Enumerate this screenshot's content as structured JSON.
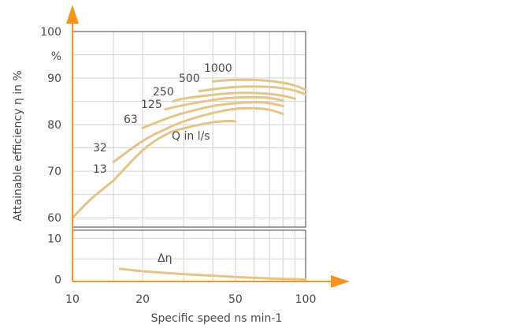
{
  "chart_data": [
    {
      "type": "line",
      "ylabel": "Attainable efficiency η in %",
      "xscale": "log",
      "xlim": [
        10,
        100
      ],
      "ylim": [
        58,
        100
      ],
      "yticks": [
        60,
        70,
        80,
        90,
        100
      ],
      "yunit_label": "%",
      "annotation": "Q in l/s",
      "grid": true,
      "series": [
        {
          "name": "13",
          "x": [
            15,
            20,
            25,
            30,
            40,
            47,
            50
          ],
          "y": [
            68,
            74.5,
            77.8,
            79.2,
            80.5,
            80.8,
            80.7
          ]
        },
        {
          "name": "32",
          "x": [
            15,
            20,
            25,
            30,
            40,
            50,
            60,
            70,
            80
          ],
          "y": [
            72,
            76.5,
            79,
            80.7,
            82.5,
            83.4,
            83.5,
            83.2,
            82.3
          ]
        },
        {
          "name": "63",
          "x": [
            20,
            25,
            30,
            40,
            50,
            60,
            70,
            80
          ],
          "y": [
            79.3,
            81.2,
            82.5,
            84,
            84.6,
            84.8,
            84.6,
            84
          ]
        },
        {
          "name": "125",
          "x": [
            25,
            30,
            40,
            50,
            60,
            70,
            80
          ],
          "y": [
            83.3,
            84.2,
            85.3,
            85.8,
            85.9,
            85.7,
            85.2
          ]
        },
        {
          "name": "250",
          "x": [
            27,
            30,
            40,
            50,
            60,
            70,
            80,
            90
          ],
          "y": [
            85,
            85.6,
            86.4,
            86.8,
            86.8,
            86.6,
            86.2,
            85.6
          ]
        },
        {
          "name": "500",
          "x": [
            35,
            40,
            50,
            60,
            70,
            80,
            90,
            100
          ],
          "y": [
            87.2,
            87.6,
            88.1,
            88.2,
            88.1,
            87.8,
            87.3,
            86.5
          ]
        },
        {
          "name": "1000",
          "x": [
            40,
            45,
            50,
            60,
            70,
            80,
            90,
            100
          ],
          "y": [
            89.3,
            89.5,
            89.6,
            89.6,
            89.4,
            89,
            88.4,
            87.5
          ]
        },
        {
          "name": "",
          "x": [
            10,
            12,
            15
          ],
          "y": [
            60,
            64,
            68
          ]
        }
      ]
    },
    {
      "type": "line",
      "xlabel": "Specific speed ns min-1",
      "xscale": "log",
      "xlim": [
        10,
        100
      ],
      "xticks": [
        10,
        20,
        50,
        100
      ],
      "ylim": [
        -0.5,
        12
      ],
      "yticks": [
        0,
        10
      ],
      "grid": true,
      "series": [
        {
          "name": "Δη",
          "x": [
            16,
            20,
            30,
            50,
            70,
            100
          ],
          "y": [
            2.6,
            2.0,
            1.3,
            0.6,
            0.25,
            0
          ]
        }
      ]
    }
  ]
}
